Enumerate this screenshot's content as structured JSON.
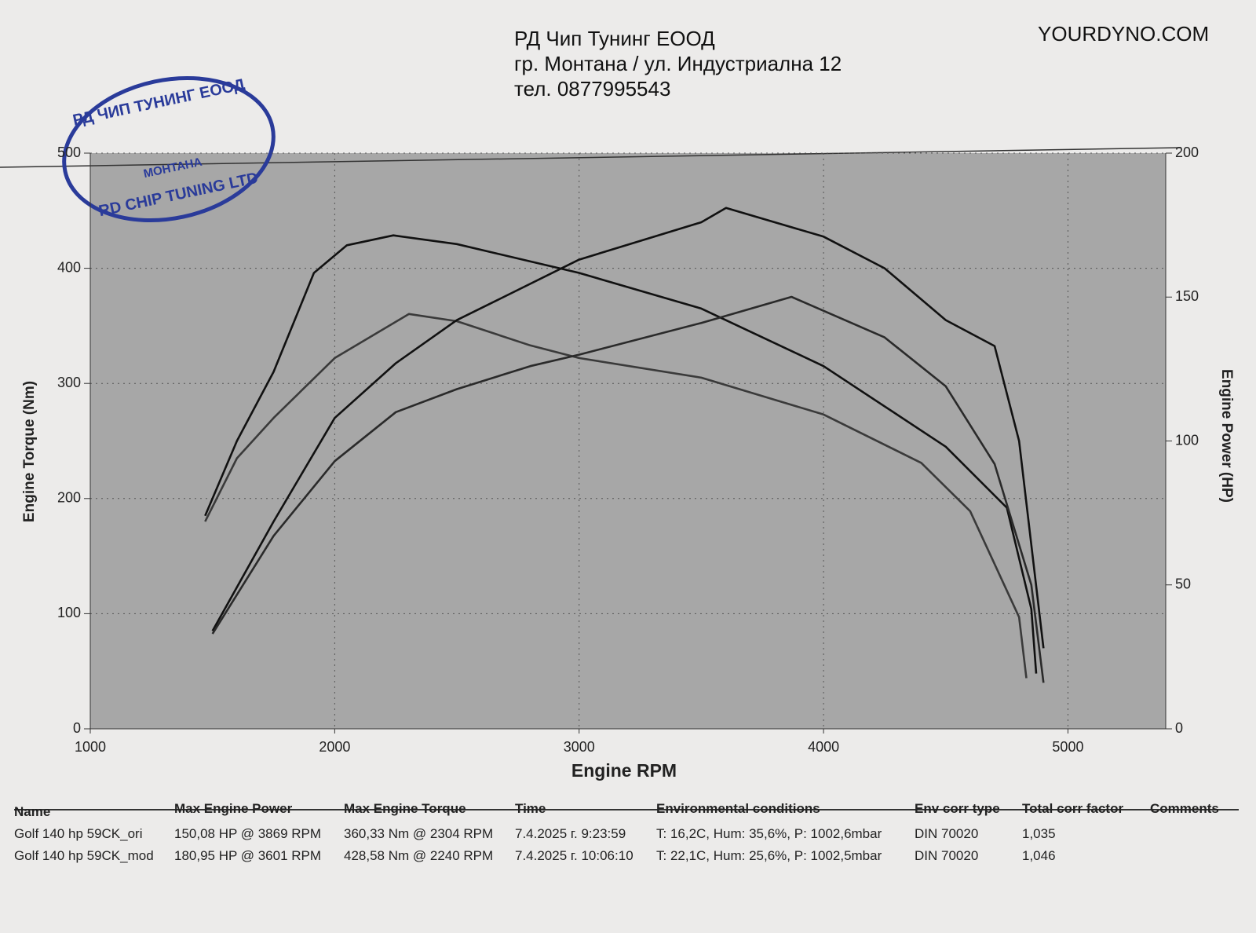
{
  "header": {
    "company": "РД Чип Тунинг ЕООД",
    "address": "гр. Монтана / ул. Индустриална 12",
    "phone": "тел. 0877995543",
    "site": "YOURDYNO.COM"
  },
  "stamp": {
    "top": "РД ЧИП ТУНИНГ ЕООД",
    "city": "МОНТАНА",
    "bottom": "RD CHIP TUNING LTD"
  },
  "chart_data": {
    "type": "line",
    "x_label": "Engine RPM",
    "y_label": "Engine Torque (Nm)",
    "y2_label": "Engine Power (HP)",
    "xlim": [
      1000,
      5400
    ],
    "xticks": [
      1000,
      2000,
      3000,
      4000,
      5000
    ],
    "ylim": [
      0,
      500
    ],
    "yticks": [
      0,
      100,
      200,
      300,
      400,
      500
    ],
    "y2lim": [
      0,
      200
    ],
    "y2ticks": [
      0,
      50,
      100,
      150,
      200
    ],
    "grid": true,
    "series": [
      {
        "color": "#111111",
        "x": [
          1470,
          1600,
          1750,
          1915,
          2050,
          2240,
          2500,
          3000,
          3500,
          4000,
          4500,
          4750,
          4850,
          4870
        ],
        "values": [
          185,
          250,
          310,
          396,
          420,
          428.58,
          421,
          396,
          365,
          315,
          245,
          192,
          104,
          48
        ]
      },
      {
        "color": "#3a3a3a",
        "x": [
          1470,
          1600,
          1750,
          2000,
          2304,
          2500,
          2800,
          3000,
          3500,
          4000,
          4400,
          4600,
          4800,
          4830
        ],
        "values": [
          180,
          235,
          270,
          322,
          360.33,
          354,
          333,
          322,
          305,
          273,
          231,
          189,
          97,
          44
        ]
      },
      {
        "color": "#111111",
        "axis": "y2",
        "x": [
          1500,
          1750,
          2000,
          2250,
          2500,
          3000,
          3500,
          3601,
          4000,
          4250,
          4500,
          4700,
          4800,
          4900
        ],
        "values": [
          34,
          72,
          108,
          127,
          142,
          163,
          176,
          180.95,
          171,
          160,
          142,
          133,
          100,
          28
        ]
      },
      {
        "color": "#2a2a2a",
        "axis": "y2",
        "x": [
          1500,
          1750,
          2000,
          2250,
          2500,
          2800,
          3000,
          3500,
          3869,
          4250,
          4500,
          4700,
          4850,
          4900
        ],
        "values": [
          33,
          67,
          93,
          110,
          118,
          126,
          130,
          141,
          150.08,
          136,
          119,
          92,
          50,
          16
        ]
      }
    ]
  },
  "table": {
    "columns": [
      "Name",
      "Max Engine Power",
      "Max Engine Torque",
      "Time",
      "Environmental conditions",
      "Env corr type",
      "Total corr factor",
      "Comments"
    ],
    "rows": [
      [
        "Golf 140 hp 59CK_ori",
        "150,08 HP @ 3869 RPM",
        "360,33 Nm @ 2304 RPM",
        "7.4.2025 г. 9:23:59",
        "T: 16,2C, Hum: 35,6%, P: 1002,6mbar",
        "DIN 70020",
        "1,035"
      ],
      [
        "Golf 140 hp 59CK_mod",
        "180,95 HP @ 3601 RPM",
        "428,58 Nm @ 2240 RPM",
        "7.4.2025 г. 10:06:10",
        "T: 22,1C, Hum: 25,6%, P: 1002,5mbar",
        "DIN 70020",
        "1,046"
      ]
    ]
  }
}
